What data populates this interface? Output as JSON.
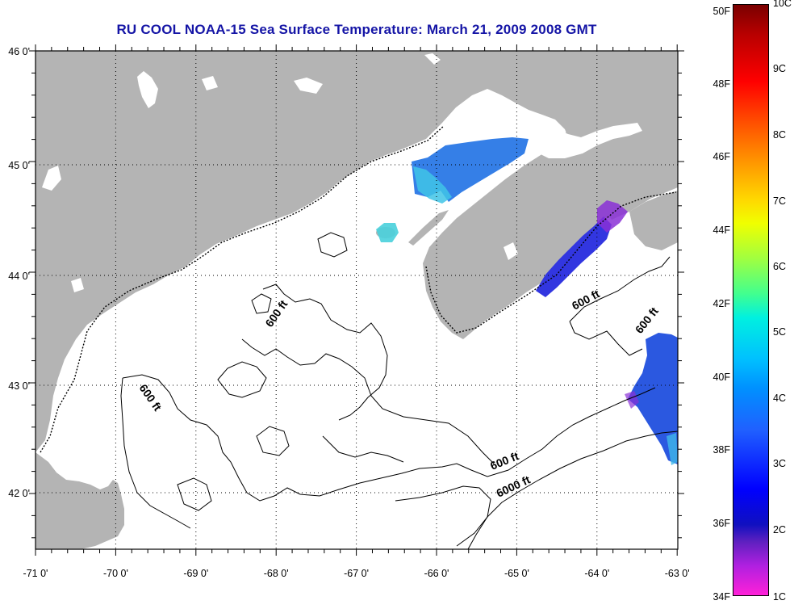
{
  "title": "RU COOL  NOAA-15  Sea Surface Temperature:  March 21, 2009 2008 GMT",
  "map": {
    "lon_labels": [
      "-71 0'",
      "-70 0'",
      "-69 0'",
      "-68 0'",
      "-67 0'",
      "-66 0'",
      "-65 0'",
      "-64 0'",
      "-63 0'"
    ],
    "lat_labels": [
      "46 0'",
      "45 0'",
      "44 0'",
      "43 0'",
      "42 0'"
    ],
    "contour_labels": [
      "600 ft",
      "600 ft",
      "600 ft",
      "600 ft",
      "600 ft",
      "6000 ft"
    ],
    "colors": {
      "land": "#b4b4b4",
      "water": "#ffffff",
      "contour": "#000000"
    }
  },
  "colorbar": {
    "fahrenheit_labels": [
      "50F",
      "48F",
      "46F",
      "44F",
      "42F",
      "40F",
      "38F",
      "36F",
      "34F"
    ],
    "celsius_labels": [
      "10C",
      "9C",
      "8C",
      "7C",
      "6C",
      "5C",
      "4C",
      "3C",
      "2C",
      "1C"
    ]
  }
}
